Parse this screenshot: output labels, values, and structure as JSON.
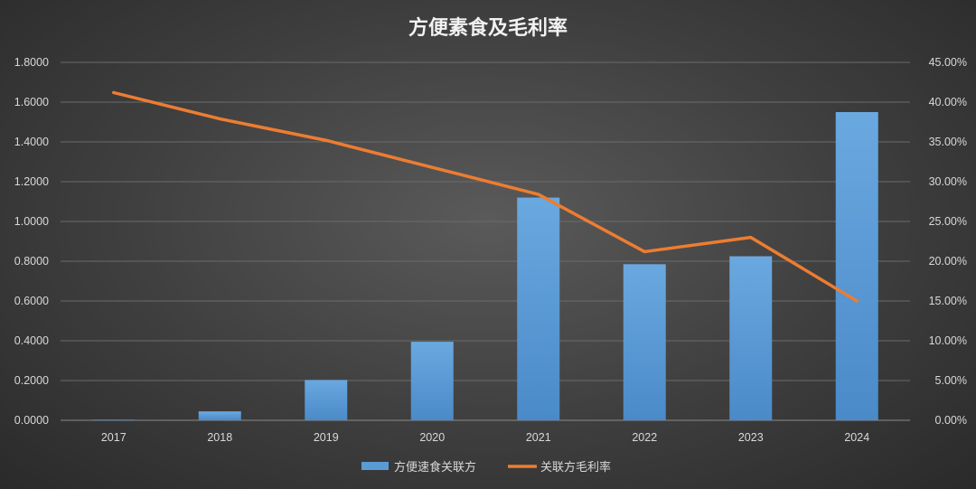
{
  "chart_data": {
    "type": "bar",
    "title": "方便素食及毛利率",
    "categories": [
      "2017",
      "2018",
      "2019",
      "2020",
      "2021",
      "2022",
      "2023",
      "2024"
    ],
    "series": [
      {
        "name": "方便速食关联方",
        "type": "bar",
        "axis": "left",
        "color": "#5b9bd5",
        "values": [
          0.003,
          0.045,
          0.203,
          0.395,
          1.12,
          0.785,
          0.825,
          1.55
        ]
      },
      {
        "name": "关联方毛利率",
        "type": "line",
        "axis": "right",
        "color": "#ed7d31",
        "values": [
          0.412,
          0.379,
          0.352,
          0.318,
          0.284,
          0.212,
          0.23,
          0.15
        ]
      }
    ],
    "y_left": {
      "ylim": [
        0,
        1.8
      ],
      "ticks": [
        "0.0000",
        "0.2000",
        "0.4000",
        "0.6000",
        "0.8000",
        "1.0000",
        "1.2000",
        "1.4000",
        "1.6000",
        "1.8000"
      ]
    },
    "y_right": {
      "ylim": [
        0,
        0.45
      ],
      "ticks": [
        "0.00%",
        "5.00%",
        "10.00%",
        "15.00%",
        "20.00%",
        "25.00%",
        "30.00%",
        "35.00%",
        "40.00%",
        "45.00%"
      ]
    },
    "grid": true,
    "legend": "bottom-center"
  }
}
